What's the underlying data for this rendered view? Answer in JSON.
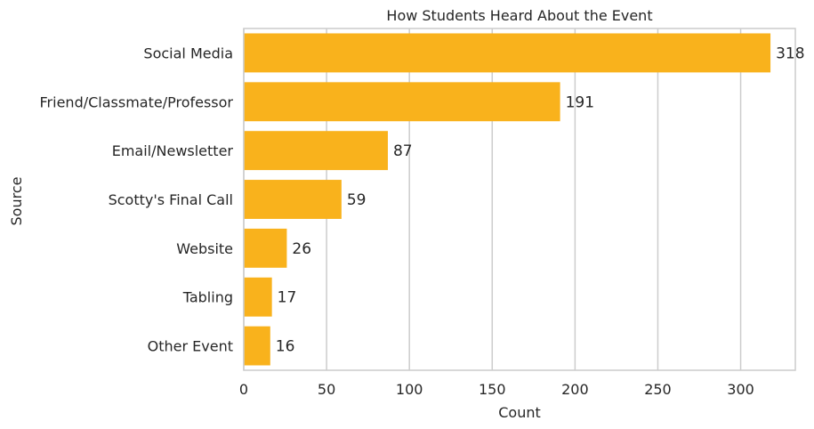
{
  "chart_data": {
    "type": "bar",
    "orientation": "horizontal",
    "title": "How Students Heard About the Event",
    "xlabel": "Count",
    "ylabel": "Source",
    "categories": [
      "Social Media",
      "Friend/Classmate/Professor",
      "Email/Newsletter",
      "Scotty's Final Call",
      "Website",
      "Tabling",
      "Other Event"
    ],
    "values": [
      318,
      191,
      87,
      59,
      26,
      17,
      16
    ],
    "xlim": [
      0,
      333
    ],
    "xticks": [
      0,
      50,
      100,
      150,
      200,
      250,
      300
    ],
    "bar_color": "#F9B21C",
    "grid": "vertical",
    "legend": "none"
  }
}
